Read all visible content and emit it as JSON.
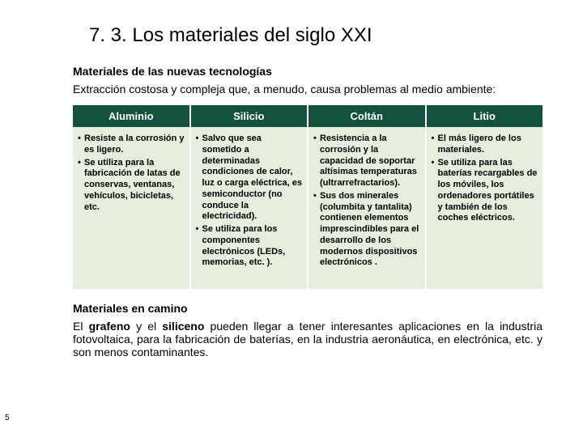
{
  "title": "7. 3. Los materiales del siglo XXI",
  "subtitle1": "Materiales de las nuevas tecnologías",
  "intro": "Extracción costosa y compleja que, a menudo, causa problemas al medio ambiente:",
  "colors": {
    "header_bg": "#12523f",
    "header_text": "#ffffff",
    "body_bg": "#e6efde",
    "body_text": "#000000",
    "page_bg": "#ffffff"
  },
  "fonts": {
    "title_size_pt": 24,
    "subtitle_size_pt": 14,
    "body_size_pt": 14,
    "cell_size_pt": 11,
    "cell_weight": "bold"
  },
  "columns": [
    {
      "name": "Aluminio",
      "points": [
        "Resiste a la corrosión y es ligero.",
        "Se utiliza para la fabricación de latas de conservas, ventanas, vehículos, bicicletas, etc."
      ]
    },
    {
      "name": "Silicio",
      "points": [
        "Salvo que sea sometido a determinadas condiciones de calor, luz o carga eléctrica, es semiconductor (no conduce la electricidad).",
        "Se utiliza para los componentes electrónicos (LEDs, memorias, etc. )."
      ]
    },
    {
      "name": "Coltán",
      "points": [
        "Resistencia a la corrosión y la capacidad de soportar altísimas temperaturas (ultrarrefractarios).",
        "Sus dos minerales (columbita y tantalita) contienen elementos imprescindibles para el desarrollo de los modernos dispositivos electrónicos ."
      ]
    },
    {
      "name": "Litio",
      "points": [
        "El más ligero de los materiales.",
        "Se utiliza para las baterías recargables de los móviles, los ordenadores portátiles y también de los coches eléctricos."
      ]
    }
  ],
  "subtitle2": "Materiales en camino",
  "outro_prefix": "El ",
  "outro_bold1": "grafeno",
  "outro_mid": " y el ",
  "outro_bold2": "siliceno",
  "outro_suffix": " pueden llegar a tener interesantes aplicaciones en la industria fotovoltaica, para la fabricación de baterías, en la industria aeronáutica, en electrónica, etc. y son menos contaminantes.",
  "page_number": "5"
}
